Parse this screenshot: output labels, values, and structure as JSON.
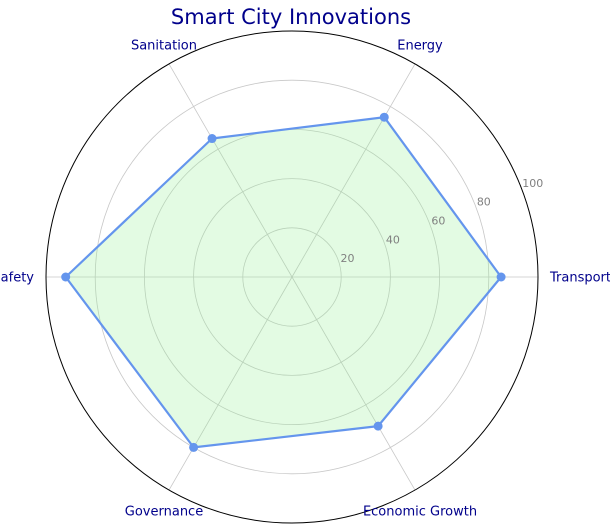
{
  "chart_data": {
    "type": "radar",
    "title": "Smart City Innovations",
    "categories": [
      "Transportation",
      "Energy",
      "Sanitation",
      "Safety",
      "Governance",
      "Economic Growth"
    ],
    "series": [
      {
        "values": [
          85,
          75,
          65,
          92,
          80,
          70
        ]
      }
    ],
    "r_range": [
      0,
      100
    ],
    "r_ticks": [
      20,
      40,
      60,
      80,
      100
    ],
    "r_tick_labels": [
      "20",
      "40",
      "60",
      "80",
      "100"
    ],
    "grid": true,
    "colors": {
      "title": "#00008b",
      "category_labels": "#00008b",
      "line": "#6495ed",
      "fill": "#90ee90",
      "grid": "#c8c8c8",
      "tick_labels": "#808080",
      "outer_frame": "#000000"
    }
  }
}
